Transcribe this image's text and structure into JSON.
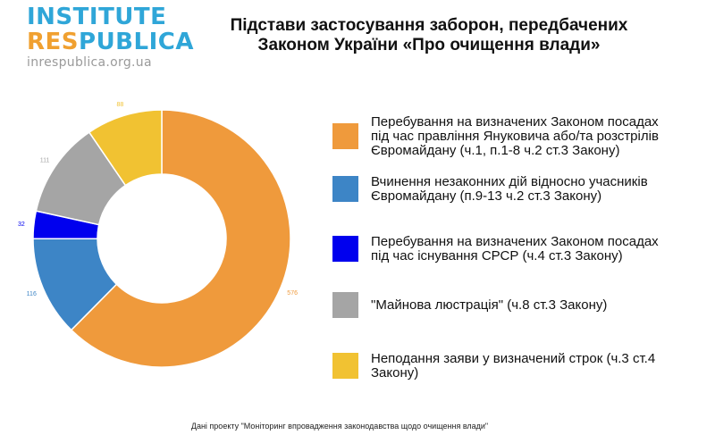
{
  "logo": {
    "line1": "INSTITUTE",
    "line2_res": "RES",
    "line2_publica": "PUBLICA",
    "url": "inrespublica.org.ua",
    "colors": {
      "primary": "#2fa6d8",
      "accent": "#f0a030",
      "url": "#9a9a9a"
    }
  },
  "chart_data": {
    "type": "pie",
    "variant": "donut",
    "title_lines": [
      "Підстави застосування заборон, передбачених",
      "Законом України «Про очищення влади»"
    ],
    "series": [
      {
        "name": "Перебування на визначених Законом посадах під час правління Януковича або/та розстрілів Євромайдану (ч.1, п.1-8 ч.2 ст.3 Закону)",
        "legend_lines": [
          "Перебування на визначених Законом посадах",
          "під час правління Януковича або/та розстрілів",
          "Євромайдану (ч.1, п.1-8 ч.2 ст.3 Закону)"
        ],
        "value": 576,
        "color": "#ef9a3c"
      },
      {
        "name": "Вчинення незаконних дій відносно учасників Євромайдану (п.9-13 ч.2 ст.3 Закону)",
        "legend_lines": [
          "Вчинення незаконних дій відносно учасників",
          "Євромайдану  (п.9-13 ч.2 ст.3 Закону)"
        ],
        "value": 116,
        "color": "#3d85c6"
      },
      {
        "name": "Перебування на визначених Законом посадах під час існування СРСР (ч.4 ст.3 Закону)",
        "legend_lines": [
          "Перебування на визначених Законом посадах",
          "під час існування СРСР (ч.4 ст.3 Закону)"
        ],
        "value": 32,
        "color": "#0000ee"
      },
      {
        "name": "\"Майнова люстрація\" (ч.8 ст.3 Закону)",
        "legend_lines": [
          "\"Майнова люстрація\" (ч.8 ст.3 Закону)"
        ],
        "value": 111,
        "color": "#a5a5a5"
      },
      {
        "name": "Неподання заяви у визначений строк (ч.3 ст.4 Закону)",
        "legend_lines": [
          "Неподання заяви у визначений строк  (ч.3 ст.4",
          "Закону)"
        ],
        "value": 88,
        "color": "#f1c232"
      }
    ],
    "legend_position": "right"
  },
  "footer": "Дані проекту \"Моніторинг впровадження законодавства щодо очищення влади\""
}
